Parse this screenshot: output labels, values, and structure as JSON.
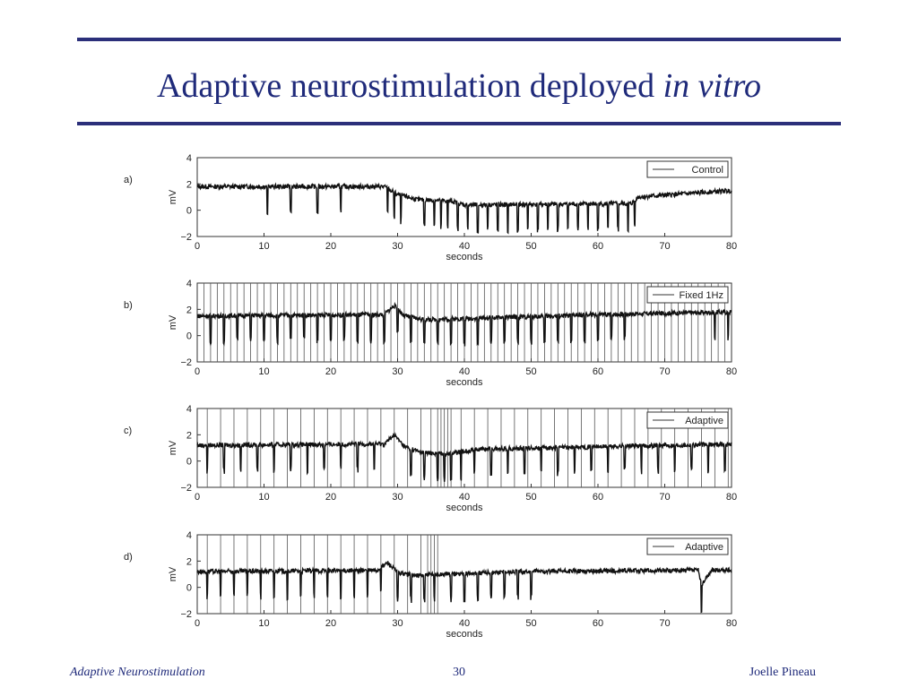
{
  "slide": {
    "title_main": "Adaptive neurostimulation deployed ",
    "title_italic": "in vitro",
    "accent_color": "#2b2f7a",
    "title_color": "#1f2a7a"
  },
  "footer": {
    "left": "Adaptive Neurostimulation",
    "center": "30",
    "right": "Joelle Pineau"
  },
  "chart_data": [
    {
      "panel": "a)",
      "type": "line",
      "legend": "Control",
      "legend_position": "top-right",
      "xlabel": "seconds",
      "ylabel": "mV",
      "xlim": [
        0,
        80
      ],
      "ylim": [
        -2,
        4
      ],
      "xticks": [
        0,
        10,
        20,
        30,
        40,
        50,
        60,
        70,
        80
      ],
      "yticks": [
        -2,
        0,
        2,
        4
      ],
      "baseline": [
        [
          0,
          1.8
        ],
        [
          28,
          1.8
        ],
        [
          30,
          1.2
        ],
        [
          33,
          0.8
        ],
        [
          38,
          0.7
        ],
        [
          40,
          0.4
        ],
        [
          65,
          0.5
        ],
        [
          66,
          1.0
        ],
        [
          80,
          1.5
        ]
      ],
      "dips": [
        10.5,
        14,
        18,
        21.5,
        28.5,
        29.5,
        30.5,
        34,
        35.5,
        36.5,
        37.5,
        39,
        40.5,
        42,
        43.5,
        45,
        46.5,
        48,
        49.5,
        51,
        52.5,
        54,
        55.5,
        57,
        58.5,
        60,
        61.5,
        63,
        64.5,
        65.5
      ],
      "stimulus_times": []
    },
    {
      "panel": "b)",
      "type": "line",
      "legend": "Fixed 1Hz",
      "legend_position": "top-right",
      "xlabel": "seconds",
      "ylabel": "mV",
      "xlim": [
        0,
        80
      ],
      "ylim": [
        -2,
        4
      ],
      "xticks": [
        0,
        10,
        20,
        30,
        40,
        50,
        60,
        70,
        80
      ],
      "yticks": [
        -2,
        0,
        2,
        4
      ],
      "baseline": [
        [
          0,
          1.5
        ],
        [
          28,
          1.6
        ],
        [
          29.5,
          2.3
        ],
        [
          31,
          1.5
        ],
        [
          34,
          1.2
        ],
        [
          40,
          1.3
        ],
        [
          60,
          1.6
        ],
        [
          80,
          1.8
        ]
      ],
      "dips": [
        2,
        4,
        6,
        8,
        10,
        12,
        14,
        16,
        18,
        20,
        22,
        24,
        26,
        28,
        30,
        32,
        34,
        36,
        38,
        40,
        42,
        44,
        46,
        48,
        50,
        52,
        54,
        56,
        58,
        60,
        62,
        64,
        77.5,
        79.5
      ],
      "stimulus_times": [
        1,
        2,
        3,
        4,
        5,
        6,
        7,
        8,
        9,
        10,
        11,
        12,
        13,
        14,
        15,
        16,
        17,
        18,
        19,
        20,
        21,
        22,
        23,
        24,
        25,
        26,
        27,
        28,
        29,
        30,
        31,
        32,
        33,
        34,
        35,
        36,
        37,
        38,
        39,
        40,
        41,
        42,
        43,
        44,
        45,
        46,
        47,
        48,
        49,
        50,
        51,
        52,
        53,
        54,
        55,
        56,
        57,
        58,
        59,
        60,
        61,
        62,
        63,
        64,
        65,
        66,
        67,
        68,
        69,
        70,
        71,
        72,
        73,
        74,
        75,
        76,
        77,
        78,
        79
      ]
    },
    {
      "panel": "c)",
      "type": "line",
      "legend": "Adaptive",
      "legend_position": "top-right",
      "xlabel": "seconds",
      "ylabel": "mV",
      "xlim": [
        0,
        80
      ],
      "ylim": [
        -2,
        4
      ],
      "xticks": [
        0,
        10,
        20,
        30,
        40,
        50,
        60,
        70,
        80
      ],
      "yticks": [
        -2,
        0,
        2,
        4
      ],
      "baseline": [
        [
          0,
          1.2
        ],
        [
          28,
          1.3
        ],
        [
          29.5,
          2.0
        ],
        [
          31,
          1.1
        ],
        [
          34,
          0.6
        ],
        [
          38,
          0.6
        ],
        [
          42,
          0.9
        ],
        [
          80,
          1.3
        ]
      ],
      "dips": [
        1.5,
        4,
        6.5,
        9,
        11.5,
        14,
        16.5,
        19,
        21.5,
        24,
        26.5,
        32,
        34,
        36,
        37,
        38,
        39.5,
        41.5,
        44,
        46.5,
        49,
        51.5,
        54,
        56.5,
        59,
        61.5,
        64,
        66.5,
        69,
        71.5,
        74,
        76.5,
        79
      ],
      "stimulus_times": [
        1.5,
        3.5,
        5.5,
        7.5,
        9.5,
        11.5,
        13.5,
        15.5,
        17.5,
        19.5,
        21.5,
        23.5,
        25.5,
        27.5,
        29.5,
        31.5,
        33.5,
        35,
        36,
        36.5,
        37,
        37.5,
        38,
        39.5,
        41.5,
        43.5,
        45.5,
        47.5,
        49.5,
        51.5,
        53.5,
        55.5,
        57.5,
        59.5,
        61.5,
        63.5,
        65.5,
        67.5,
        69.5,
        71.5,
        73.5,
        75.5,
        77.5,
        79.5
      ]
    },
    {
      "panel": "d)",
      "type": "line",
      "legend": "Adaptive",
      "legend_position": "top-right",
      "xlabel": "seconds",
      "ylabel": "mV",
      "xlim": [
        0,
        80
      ],
      "ylim": [
        -2,
        4
      ],
      "xticks": [
        0,
        10,
        20,
        30,
        40,
        50,
        60,
        70,
        80
      ],
      "yticks": [
        -2,
        0,
        2,
        4
      ],
      "baseline": [
        [
          0,
          1.2
        ],
        [
          27,
          1.3
        ],
        [
          28.5,
          1.9
        ],
        [
          30,
          1.1
        ],
        [
          33,
          0.9
        ],
        [
          37,
          1.0
        ],
        [
          48,
          1.2
        ],
        [
          75,
          1.3
        ],
        [
          75.5,
          0.2
        ],
        [
          77,
          1.3
        ],
        [
          80,
          1.3
        ]
      ],
      "dips": [
        1.5,
        3.5,
        5.5,
        7.5,
        9.5,
        11.5,
        13.5,
        15.5,
        17.5,
        19.5,
        21.5,
        23.5,
        25.5,
        27.5,
        30,
        32,
        34,
        35.5,
        38,
        40,
        42,
        44,
        46,
        48,
        50,
        75.5
      ],
      "stimulus_times": [
        1.5,
        3.5,
        5.5,
        7.5,
        9.5,
        11.5,
        13.5,
        15.5,
        17.5,
        19.5,
        21.5,
        23.5,
        25.5,
        27.5,
        29.5,
        31.5,
        33.5,
        34.5,
        35,
        35.5,
        36
      ]
    }
  ]
}
